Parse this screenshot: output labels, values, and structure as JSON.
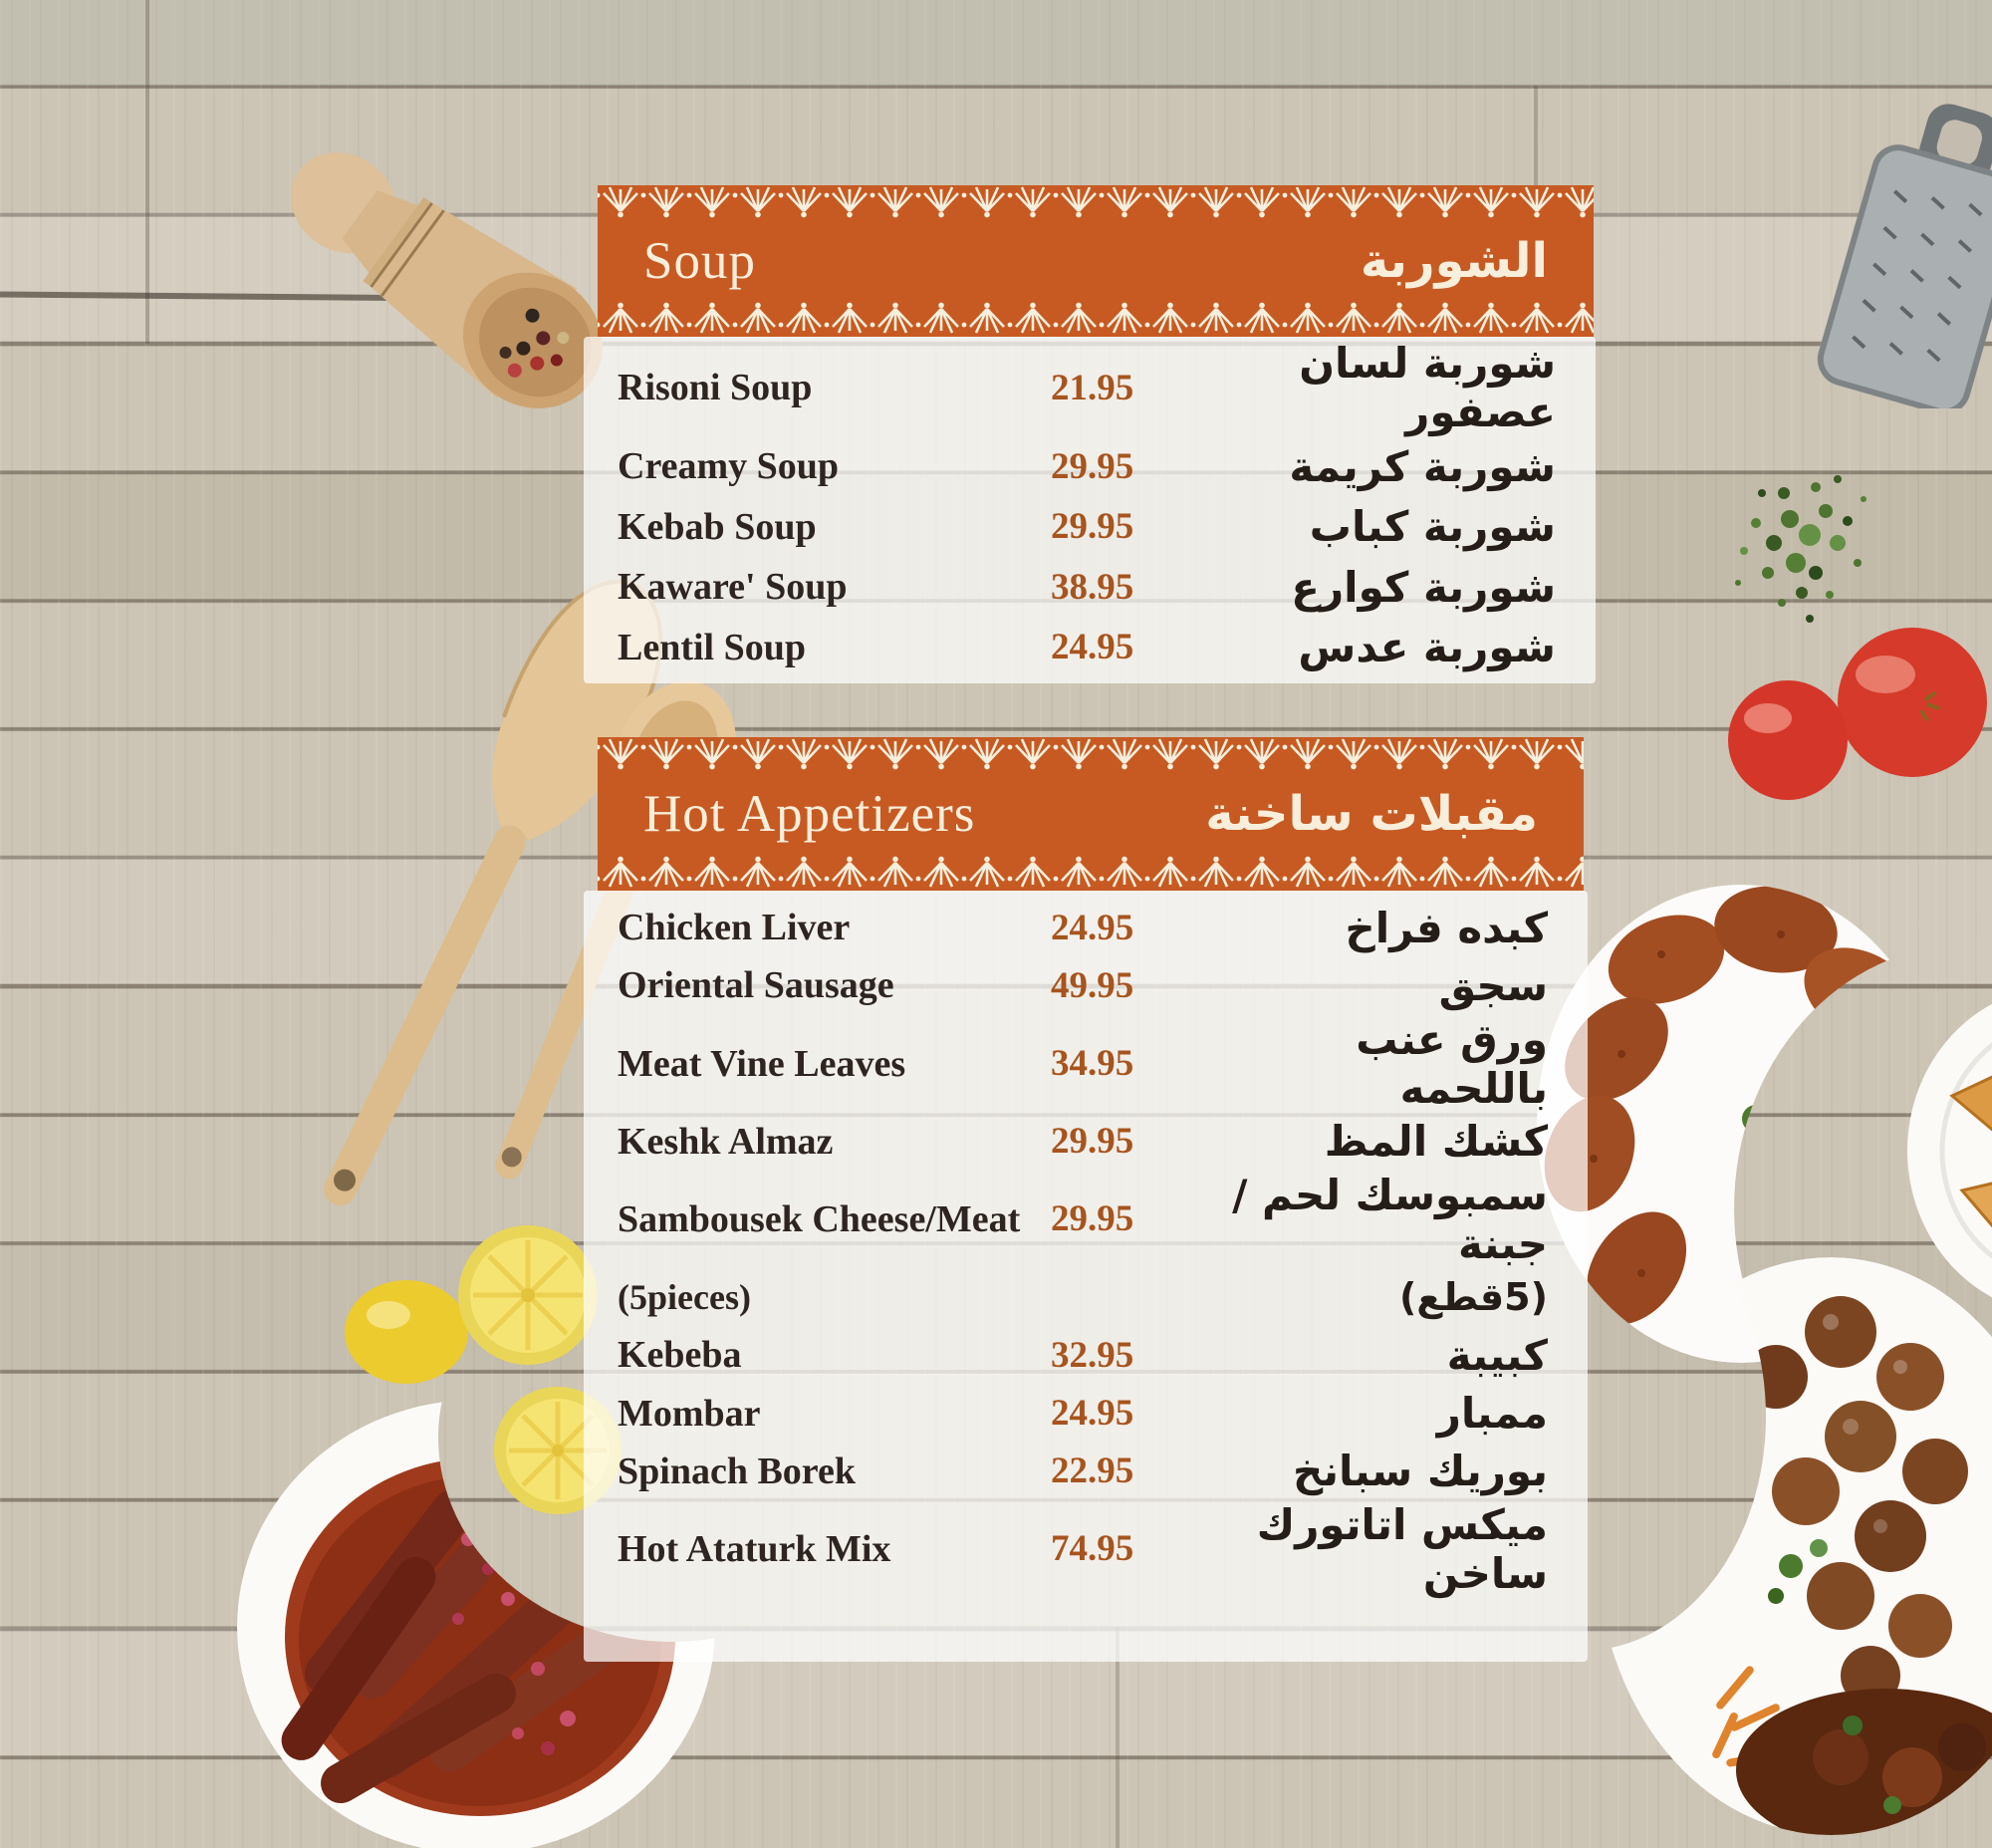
{
  "page": {
    "type": "restaurant-menu-page"
  },
  "menu": {
    "sections": [
      {
        "title_en": "Soup",
        "title_ar": "الشوربة",
        "items": [
          {
            "name_en": "Risoni Soup",
            "price": "21.95",
            "name_ar": "شوربة لسان عصفور"
          },
          {
            "name_en": "Creamy Soup",
            "price": "29.95",
            "name_ar": "شوربة كريمة"
          },
          {
            "name_en": "Kebab Soup",
            "price": "29.95",
            "name_ar": "شوربة كباب"
          },
          {
            "name_en": "Kaware' Soup",
            "price": "38.95",
            "name_ar": "شوربة كوارع"
          },
          {
            "name_en": "Lentil Soup",
            "price": "24.95",
            "name_ar": "شوربة عدس"
          }
        ]
      },
      {
        "title_en": "Hot Appetizers",
        "title_ar": "مقبلات ساخنة",
        "items": [
          {
            "name_en": "Chicken Liver",
            "price": "24.95",
            "name_ar": "كبده فراخ"
          },
          {
            "name_en": "Oriental Sausage",
            "price": "49.95",
            "name_ar": "سجق"
          },
          {
            "name_en": "Meat Vine Leaves",
            "price": "34.95",
            "name_ar": "ورق عنب باللحمه"
          },
          {
            "name_en": "Keshk Almaz",
            "price": "29.95",
            "name_ar": "كشك المظ"
          },
          {
            "name_en": "Sambousek Cheese/Meat",
            "price": "29.95",
            "name_ar": "سمبوسك لحم /جبنة",
            "note_en": "(5pieces)",
            "note_ar": "(5قطع)"
          },
          {
            "name_en": "Kebeba",
            "price": "32.95",
            "name_ar": "كبيبة"
          },
          {
            "name_en": "Mombar",
            "price": "24.95",
            "name_ar": "ممبار"
          },
          {
            "name_en": "Spinach Borek",
            "price": "22.95",
            "name_ar": "بوريك سبانخ"
          },
          {
            "name_en": "Hot Ataturk Mix",
            "price": "74.95",
            "name_ar": "ميكس اتاتورك ساخن"
          }
        ]
      }
    ]
  },
  "colors": {
    "header_background": "#c75a22",
    "lace": "#f7eedb",
    "price": "#a7541e",
    "item_text": "#2e2521",
    "panel": "rgba(255,255,255,0.72)"
  },
  "decorations": [
    "wooden-scoop",
    "metal-grater",
    "herb-sprinkle",
    "tomatoes",
    "wooden-spatula",
    "wooden-spoon",
    "lemon-slices",
    "sausage-plate",
    "kibbeh-plate",
    "samosa-plate",
    "meatball-plate"
  ]
}
